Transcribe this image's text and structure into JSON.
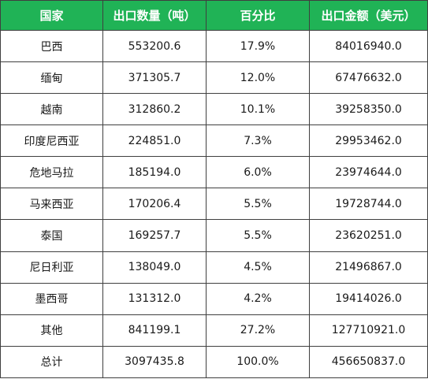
{
  "table": {
    "header": {
      "country": "国家",
      "quantity": "出口数量（吨）",
      "percent": "百分比",
      "amount": "出口金额（美元）"
    },
    "rows": [
      {
        "country": "巴西",
        "quantity": "553200.6",
        "percent": "17.9%",
        "amount": "84016940.0"
      },
      {
        "country": "缅甸",
        "quantity": "371305.7",
        "percent": "12.0%",
        "amount": "67476632.0"
      },
      {
        "country": "越南",
        "quantity": "312860.2",
        "percent": "10.1%",
        "amount": "39258350.0"
      },
      {
        "country": "印度尼西亚",
        "quantity": "224851.0",
        "percent": "7.3%",
        "amount": "29953462.0"
      },
      {
        "country": "危地马拉",
        "quantity": "185194.0",
        "percent": "6.0%",
        "amount": "23974644.0"
      },
      {
        "country": "马来西亚",
        "quantity": "170206.4",
        "percent": "5.5%",
        "amount": "19728744.0"
      },
      {
        "country": "泰国",
        "quantity": "169257.7",
        "percent": "5.5%",
        "amount": "23620251.0"
      },
      {
        "country": "尼日利亚",
        "quantity": "138049.0",
        "percent": "4.5%",
        "amount": "21496867.0"
      },
      {
        "country": "墨西哥",
        "quantity": "131312.0",
        "percent": "4.2%",
        "amount": "19414026.0"
      },
      {
        "country": "其他",
        "quantity": "841199.1",
        "percent": "27.2%",
        "amount": "127710921.0"
      },
      {
        "country": "总计",
        "quantity": "3097435.8",
        "percent": "100.0%",
        "amount": "456650837.0"
      }
    ],
    "colors": {
      "header_background": "#20b356",
      "header_text": "#ffffff",
      "border": "#3f3f3f"
    }
  }
}
